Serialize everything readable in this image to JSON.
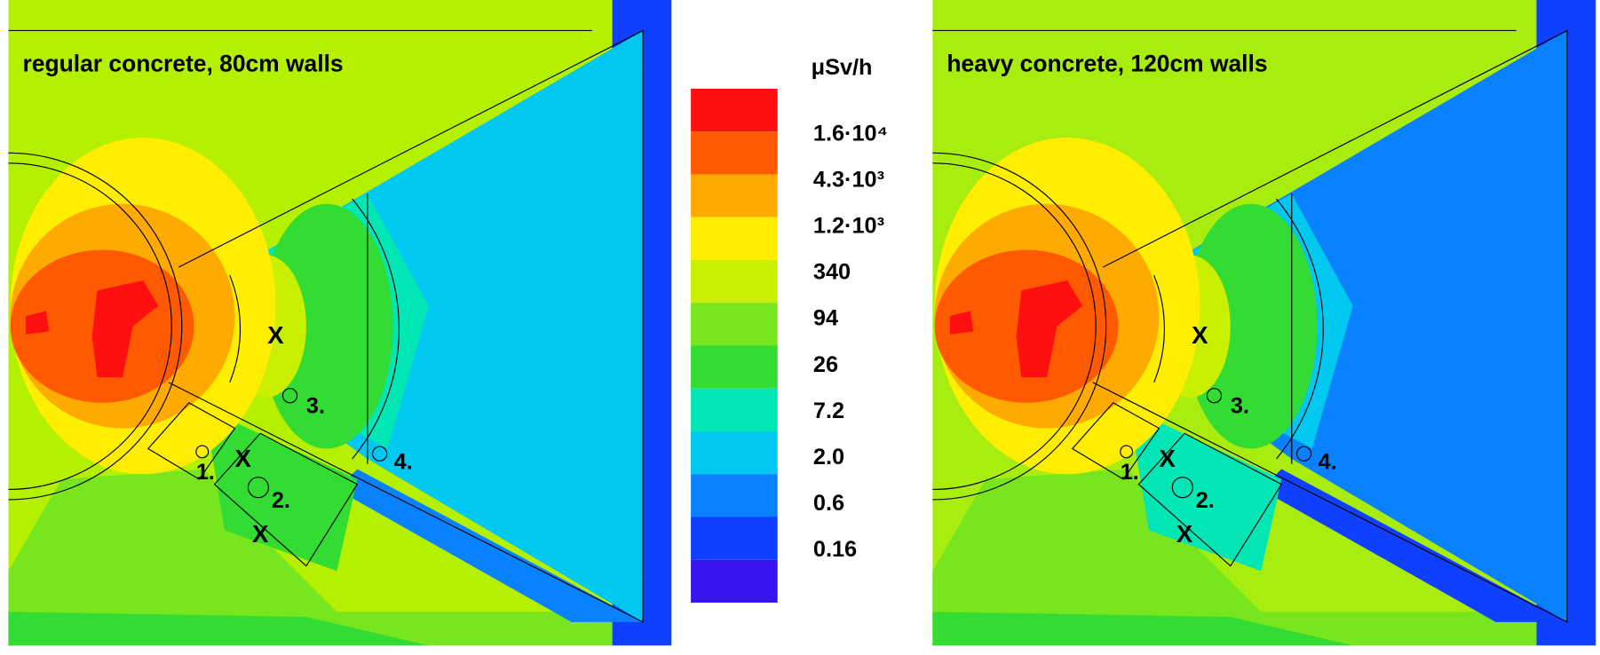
{
  "panels": [
    {
      "title": "regular concrete, 80cm walls",
      "x_labels": [
        "X",
        "X",
        "X"
      ],
      "markers": [
        "1.",
        "2.",
        "3.",
        "4."
      ]
    },
    {
      "title": "heavy concrete, 120cm walls",
      "x_labels": [
        "X",
        "X",
        "X"
      ],
      "markers": [
        "1.",
        "2.",
        "3.",
        "4."
      ]
    }
  ],
  "colorbar": {
    "unit": "μSv/h",
    "labels": [
      "1.6·10⁴",
      "4.3·10³",
      "1.2·10³",
      "340",
      "94",
      "26",
      "7.2",
      "2.0",
      "0.6",
      "0.16"
    ]
  }
}
